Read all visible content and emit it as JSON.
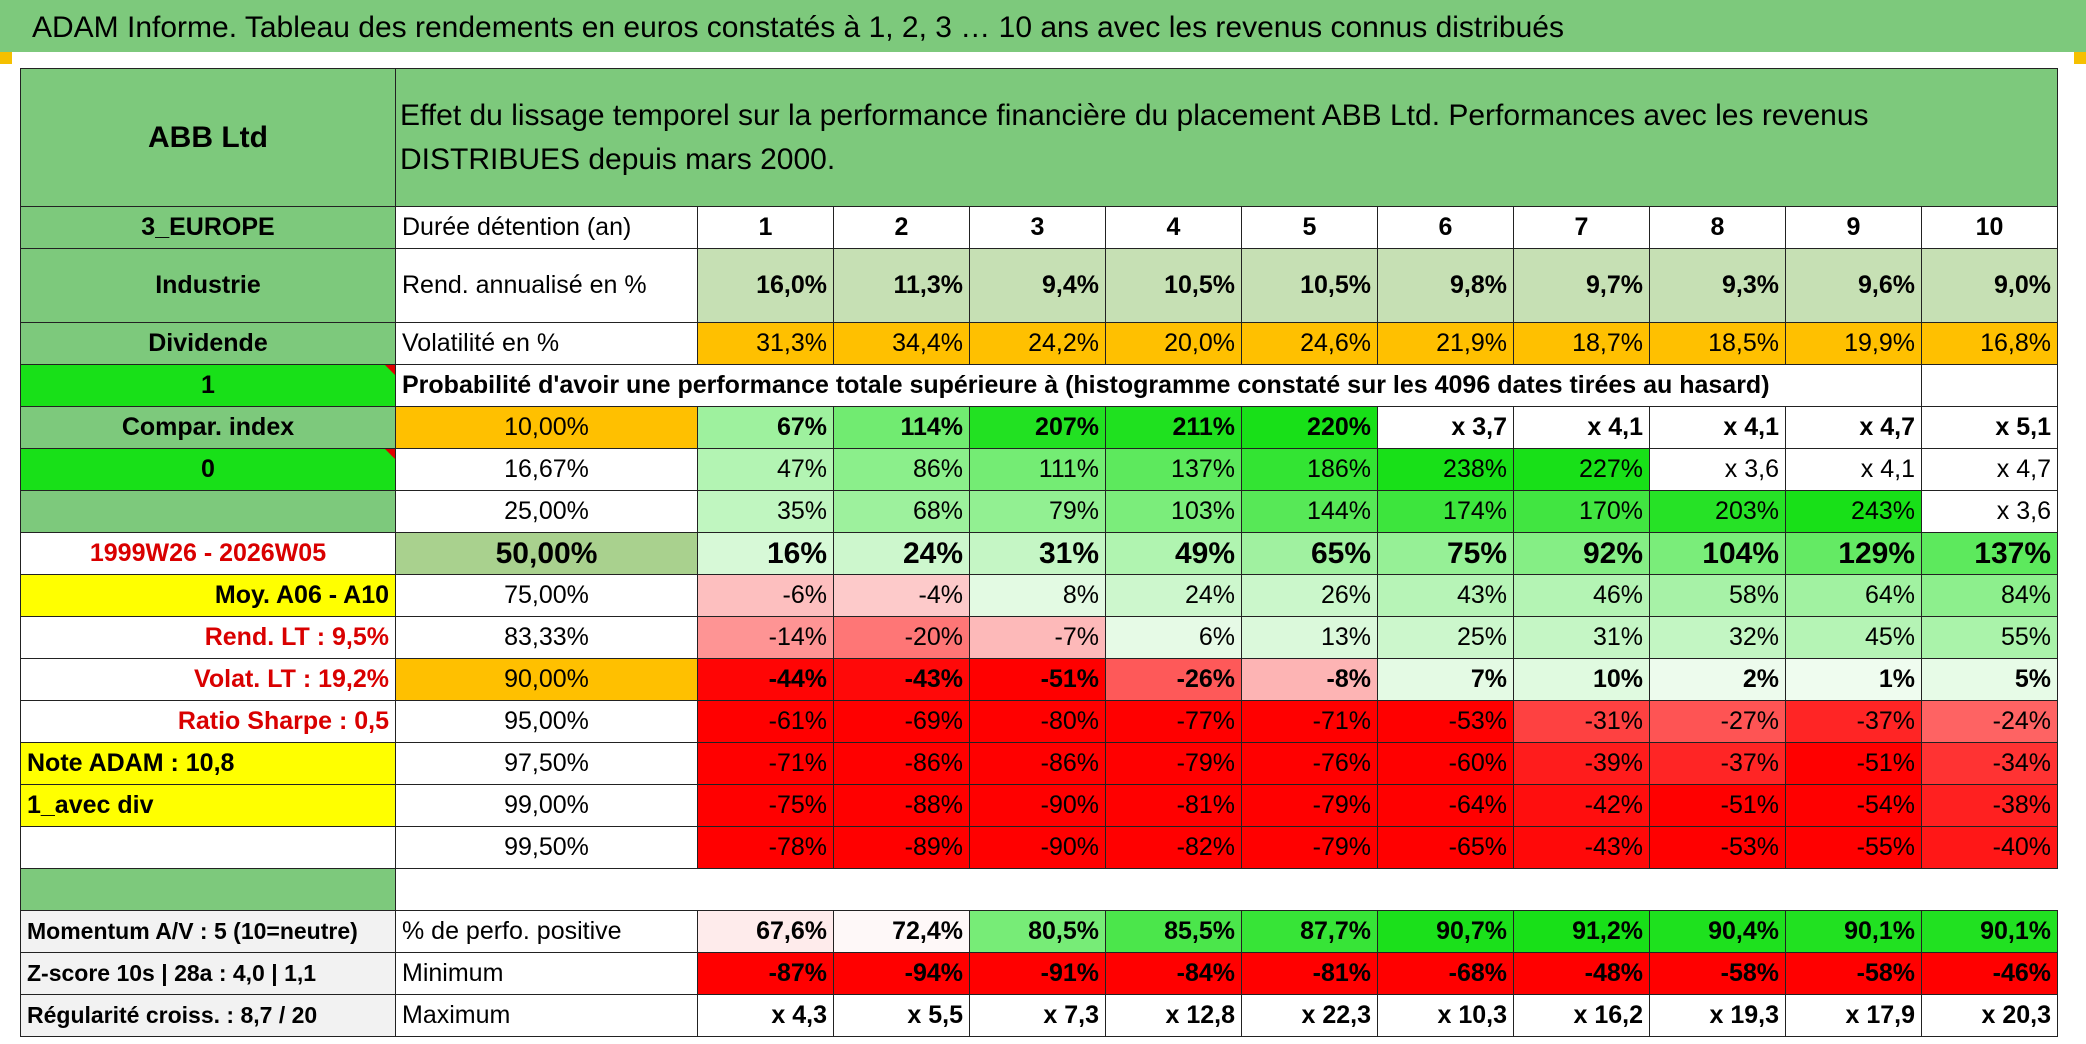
{
  "title": "ADAM Informe. Tableau des rendements en euros constatés à 1, 2, 3 … 10 ans avec les revenus connus distribués",
  "header": {
    "name": "ABB Ltd",
    "description": "Effet du lissage temporel sur la performance financière du placement ABB Ltd. Performances avec les revenus DISTRIBUES depuis mars 2000."
  },
  "sidebar": {
    "region": "3_EUROPE",
    "sector": "Industrie",
    "dividend": "Dividende",
    "flag1": "1",
    "compar_index": "Compar. index",
    "flag0": "0",
    "period": "1999W26 - 2026W05",
    "moy": "Moy. A06 - A10",
    "rend_lt": "Rend. LT :   9,5%",
    "volat_lt": "Volat. LT :   19,2%",
    "sharpe": "Ratio Sharpe :    0,5",
    "note": "Note ADAM : 10,8",
    "avec_div": "1_avec div",
    "momentum": "Momentum A/V : 5 (10=neutre)",
    "zscore": "Z-score 10s | 28a : 4,0 | 1,1",
    "regularite": "Régularité croiss. : 8,7 / 20"
  },
  "rows": {
    "duree_label": "Durée détention (an)",
    "years": [
      "1",
      "2",
      "3",
      "4",
      "5",
      "6",
      "7",
      "8",
      "9",
      "10"
    ],
    "rend_label": "Rend. annualisé en %",
    "rend": [
      "16,0%",
      "11,3%",
      "9,4%",
      "10,5%",
      "10,5%",
      "9,8%",
      "9,7%",
      "9,3%",
      "9,6%",
      "9,0%"
    ],
    "vol_label": "Volatilité en %",
    "vol": [
      "31,3%",
      "34,4%",
      "24,2%",
      "20,0%",
      "24,6%",
      "21,9%",
      "18,7%",
      "18,5%",
      "19,9%",
      "16,8%"
    ],
    "prob_label": "Probabilité d'avoir une performance totale supérieure à (histogramme constaté sur les 4096 dates tirées au hasard)",
    "quantiles": [
      {
        "p": "10,00%",
        "v": [
          "67%",
          "114%",
          "207%",
          "211%",
          "220%",
          "x 3,7",
          "x 4,1",
          "x 4,1",
          "x 4,7",
          "x 5,1"
        ]
      },
      {
        "p": "16,67%",
        "v": [
          "47%",
          "86%",
          "111%",
          "137%",
          "186%",
          "238%",
          "227%",
          "x 3,6",
          "x 4,1",
          "x 4,7"
        ]
      },
      {
        "p": "25,00%",
        "v": [
          "35%",
          "68%",
          "79%",
          "103%",
          "144%",
          "174%",
          "170%",
          "203%",
          "243%",
          "x 3,6"
        ]
      },
      {
        "p": "50,00%",
        "v": [
          "16%",
          "24%",
          "31%",
          "49%",
          "65%",
          "75%",
          "92%",
          "104%",
          "129%",
          "137%"
        ]
      },
      {
        "p": "75,00%",
        "v": [
          "-6%",
          "-4%",
          "8%",
          "24%",
          "26%",
          "43%",
          "46%",
          "58%",
          "64%",
          "84%"
        ]
      },
      {
        "p": "83,33%",
        "v": [
          "-14%",
          "-20%",
          "-7%",
          "6%",
          "13%",
          "25%",
          "31%",
          "32%",
          "45%",
          "55%"
        ]
      },
      {
        "p": "90,00%",
        "v": [
          "-44%",
          "-43%",
          "-51%",
          "-26%",
          "-8%",
          "7%",
          "10%",
          "2%",
          "1%",
          "5%"
        ]
      },
      {
        "p": "95,00%",
        "v": [
          "-61%",
          "-69%",
          "-80%",
          "-77%",
          "-71%",
          "-53%",
          "-31%",
          "-27%",
          "-37%",
          "-24%"
        ]
      },
      {
        "p": "97,50%",
        "v": [
          "-71%",
          "-86%",
          "-86%",
          "-79%",
          "-76%",
          "-60%",
          "-39%",
          "-37%",
          "-51%",
          "-34%"
        ]
      },
      {
        "p": "99,00%",
        "v": [
          "-75%",
          "-88%",
          "-90%",
          "-81%",
          "-79%",
          "-64%",
          "-42%",
          "-51%",
          "-54%",
          "-38%"
        ]
      },
      {
        "p": "99,50%",
        "v": [
          "-78%",
          "-89%",
          "-90%",
          "-82%",
          "-79%",
          "-65%",
          "-43%",
          "-53%",
          "-55%",
          "-40%"
        ]
      }
    ],
    "pos_label": "% de perfo. positive",
    "pos": [
      "67,6%",
      "72,4%",
      "80,5%",
      "85,5%",
      "87,7%",
      "90,7%",
      "91,2%",
      "90,4%",
      "90,1%",
      "90,1%"
    ],
    "min_label": "Minimum",
    "min": [
      "-87%",
      "-94%",
      "-91%",
      "-84%",
      "-81%",
      "-68%",
      "-48%",
      "-58%",
      "-58%",
      "-46%"
    ],
    "max_label": "Maximum",
    "max": [
      "x 4,3",
      "x 5,5",
      "x 7,3",
      "x 12,8",
      "x 22,3",
      "x 10,3",
      "x 16,2",
      "x 19,3",
      "x 17,9",
      "x 20,3"
    ]
  },
  "colors": {
    "header_green": "#7dc97c",
    "lime": "#18e018",
    "yellow": "#ffff00",
    "orange": "#ffc000",
    "red": "#ff0000",
    "text_red": "#d90000"
  }
}
